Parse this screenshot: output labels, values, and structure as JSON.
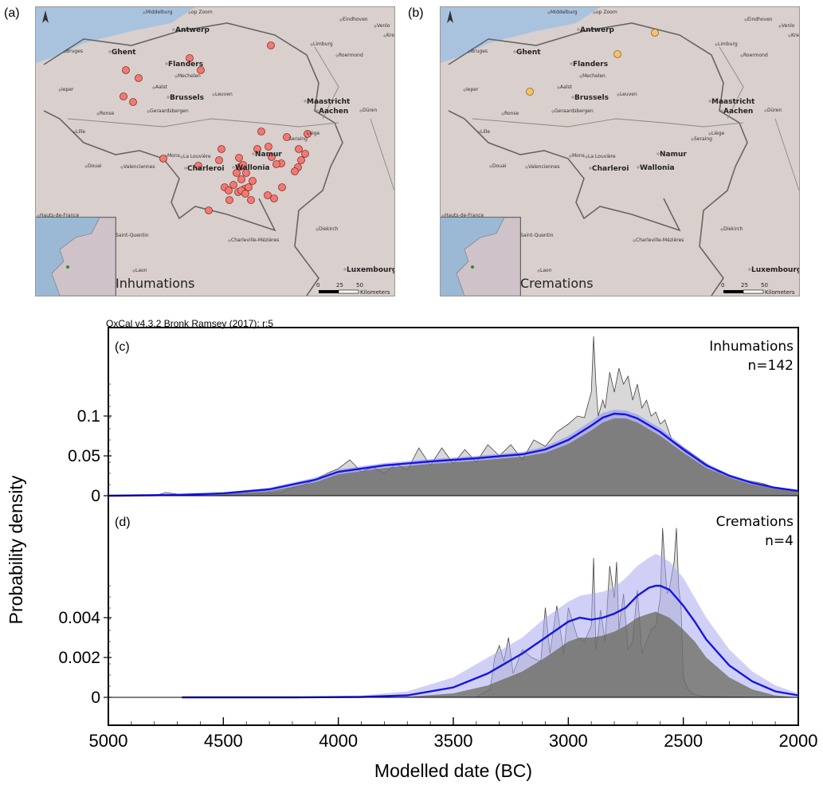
{
  "maps": [
    {
      "panel": "(a)",
      "caption": "Inhumations",
      "dot_color": "#f07a73",
      "dot_stroke": "#8a2e2a",
      "places": [
        "Middelburg",
        "op Zoom",
        "Eindhoven",
        "Venlo",
        "Kre",
        "Antwerp",
        "Bruges",
        "Ghent",
        "Limburg",
        "Roermond",
        "Flanders",
        "Mechelen",
        "Ieper",
        "Aalst",
        "Brussels",
        "Leuven",
        "Maastricht",
        "Aachen",
        "Düren",
        "Ronse",
        "Geraardsbergen",
        "Lille",
        "Liège",
        "Seraing",
        "Mons",
        "La Louvière",
        "Namur",
        "Douai",
        "Valenciennes",
        "Charleroi",
        "Wallonia",
        "Hauts-de-France",
        "Saint-Quentin",
        "Charleville-Mézières",
        "Diekirch",
        "Luxembourg",
        "Laon"
      ],
      "scale_labels": [
        "0",
        "25",
        "50"
      ],
      "scale_unit": "Kilometers"
    },
    {
      "panel": "(b)",
      "caption": "Cremations",
      "dot_color": "#f5c26b",
      "dot_stroke": "#8a6a20",
      "places": [
        "Middelburg",
        "op Zoom",
        "Eindhoven",
        "Venlo",
        "Kre",
        "Antwerp",
        "Bruges",
        "Ghent",
        "Limburg",
        "Roermond",
        "Flanders",
        "Mechelen",
        "Ieper",
        "Aalst",
        "Brussels",
        "Leuven",
        "Maastricht",
        "Aachen",
        "Düren",
        "Ronse",
        "Geraardsbergen",
        "Lille",
        "Liège",
        "Seraing",
        "Mons",
        "La Louvière",
        "Namur",
        "Douai",
        "Valenciennes",
        "Charleroi",
        "Wallonia",
        "Hauts-de-France",
        "Saint-Quentin",
        "Charleville-Mézières",
        "Diekirch",
        "Luxembourg",
        "Laon"
      ],
      "scale_labels": [
        "0",
        "25",
        "50"
      ],
      "scale_unit": "Kilometers"
    }
  ],
  "oxcal_header": "OxCal v4.3.2 Bronk Ramsey (2017); r:5",
  "chart_data": [
    {
      "panel": "(c)",
      "type": "area",
      "label": "Inhumations",
      "n_label": "n=142",
      "ylabel": "Probability density",
      "yticks": [
        0,
        0.05,
        0.1
      ],
      "ytick_labels": [
        "0",
        "0.05",
        "0.1"
      ],
      "ylim": [
        0,
        0.2
      ],
      "kde_color": "#1515e6",
      "kde_band_color": "#8a8ff0",
      "kde": {
        "x": [
          5000,
          4700,
          4500,
          4300,
          4100,
          4000,
          3800,
          3600,
          3400,
          3200,
          3100,
          3000,
          2900,
          2850,
          2800,
          2750,
          2700,
          2600,
          2500,
          2400,
          2300,
          2200,
          2100,
          2000
        ],
        "y": [
          0.0,
          0.001,
          0.003,
          0.008,
          0.02,
          0.03,
          0.038,
          0.043,
          0.047,
          0.052,
          0.058,
          0.07,
          0.088,
          0.098,
          0.103,
          0.102,
          0.097,
          0.08,
          0.058,
          0.038,
          0.025,
          0.016,
          0.01,
          0.006
        ]
      },
      "kde_upper": [
        0.0005,
        0.002,
        0.004,
        0.01,
        0.023,
        0.033,
        0.041,
        0.046,
        0.05,
        0.055,
        0.062,
        0.075,
        0.094,
        0.104,
        0.108,
        0.107,
        0.102,
        0.085,
        0.062,
        0.041,
        0.027,
        0.018,
        0.011,
        0.007
      ],
      "kde_lower": [
        0.0,
        0.0005,
        0.002,
        0.006,
        0.017,
        0.027,
        0.035,
        0.04,
        0.044,
        0.049,
        0.054,
        0.065,
        0.082,
        0.092,
        0.097,
        0.097,
        0.092,
        0.075,
        0.054,
        0.035,
        0.023,
        0.014,
        0.009,
        0.005
      ],
      "spd": {
        "x": [
          5000,
          4800,
          4750,
          4700,
          4550,
          4400,
          4250,
          4200,
          4150,
          4100,
          4050,
          4000,
          3950,
          3900,
          3850,
          3800,
          3750,
          3700,
          3650,
          3600,
          3550,
          3500,
          3450,
          3400,
          3350,
          3300,
          3250,
          3200,
          3150,
          3100,
          3050,
          3000,
          2960,
          2930,
          2900,
          2890,
          2880,
          2870,
          2860,
          2850,
          2840,
          2820,
          2800,
          2780,
          2760,
          2740,
          2720,
          2700,
          2680,
          2660,
          2640,
          2620,
          2600,
          2580,
          2550,
          2500,
          2450,
          2400,
          2350,
          2300,
          2250,
          2200,
          2150,
          2100,
          2050,
          2000
        ],
        "y": [
          0.0,
          0.0,
          0.004,
          0.002,
          0.0,
          0.002,
          0.004,
          0.01,
          0.014,
          0.02,
          0.028,
          0.034,
          0.045,
          0.03,
          0.036,
          0.028,
          0.04,
          0.032,
          0.06,
          0.038,
          0.06,
          0.04,
          0.058,
          0.042,
          0.064,
          0.05,
          0.064,
          0.045,
          0.07,
          0.062,
          0.08,
          0.09,
          0.1,
          0.098,
          0.13,
          0.2,
          0.14,
          0.1,
          0.11,
          0.12,
          0.11,
          0.155,
          0.13,
          0.16,
          0.14,
          0.15,
          0.12,
          0.14,
          0.11,
          0.12,
          0.1,
          0.105,
          0.09,
          0.095,
          0.07,
          0.06,
          0.05,
          0.04,
          0.03,
          0.025,
          0.02,
          0.018,
          0.015,
          0.01,
          0.008,
          0.005
        ]
      }
    },
    {
      "panel": "(d)",
      "type": "area",
      "label": "Cremations",
      "n_label": "n=4",
      "ylabel": "Probability density",
      "yticks": [
        0,
        0.002,
        0.004
      ],
      "ytick_labels": [
        "0",
        "0.002",
        "0.004"
      ],
      "ylim": [
        0,
        0.008
      ],
      "kde_color": "#1515e6",
      "kde_band_color": "#a9a9f0",
      "kde": {
        "x": [
          4680,
          4200,
          3900,
          3700,
          3500,
          3350,
          3200,
          3100,
          3000,
          2950,
          2900,
          2850,
          2800,
          2750,
          2700,
          2650,
          2620,
          2600,
          2560,
          2500,
          2450,
          2400,
          2300,
          2200,
          2100,
          2000
        ],
        "y": [
          0.0,
          0.0,
          2e-05,
          0.0001,
          0.0005,
          0.0012,
          0.0022,
          0.003,
          0.0038,
          0.004,
          0.0039,
          0.004,
          0.0042,
          0.0045,
          0.0051,
          0.0055,
          0.0056,
          0.0056,
          0.0054,
          0.0046,
          0.0038,
          0.0029,
          0.0016,
          0.0008,
          0.0003,
          0.0001
        ]
      },
      "kde_upper": [
        0.0,
        1e-05,
        0.0001,
        0.0003,
        0.001,
        0.002,
        0.003,
        0.004,
        0.0048,
        0.0051,
        0.0052,
        0.0053,
        0.0055,
        0.006,
        0.0066,
        0.007,
        0.0072,
        0.0071,
        0.0068,
        0.006,
        0.005,
        0.004,
        0.0024,
        0.0013,
        0.0006,
        0.0002
      ],
      "kde_lower": [
        0.0,
        0.0,
        0.0,
        3e-05,
        0.0002,
        0.0006,
        0.0013,
        0.002,
        0.0028,
        0.003,
        0.003,
        0.0031,
        0.0033,
        0.0036,
        0.004,
        0.0042,
        0.0043,
        0.0042,
        0.004,
        0.0034,
        0.0028,
        0.002,
        0.001,
        0.0004,
        0.0001,
        0.0
      ],
      "spd": {
        "x": [
          5000,
          3400,
          3340,
          3320,
          3300,
          3280,
          3260,
          3240,
          3200,
          3160,
          3120,
          3100,
          3080,
          3050,
          3020,
          3000,
          2960,
          2930,
          2900,
          2890,
          2880,
          2870,
          2860,
          2840,
          2820,
          2800,
          2790,
          2780,
          2760,
          2740,
          2720,
          2700,
          2680,
          2660,
          2640,
          2620,
          2600,
          2590,
          2580,
          2570,
          2560,
          2540,
          2530,
          2520,
          2510,
          2500,
          2480,
          2460,
          2440,
          2400,
          2300,
          2200,
          2100,
          2000
        ],
        "y": [
          0.0,
          0.0,
          0.0004,
          0.002,
          0.0026,
          0.0018,
          0.003,
          0.0012,
          0.0024,
          0.002,
          0.0018,
          0.0045,
          0.0022,
          0.0046,
          0.0022,
          0.0045,
          0.003,
          0.0028,
          0.0036,
          0.007,
          0.0024,
          0.0032,
          0.0044,
          0.0028,
          0.0066,
          0.005,
          0.0068,
          0.0034,
          0.0052,
          0.0024,
          0.0028,
          0.0054,
          0.0022,
          0.0028,
          0.0034,
          0.0036,
          0.005,
          0.0085,
          0.0066,
          0.0052,
          0.0055,
          0.0068,
          0.0085,
          0.0055,
          0.0046,
          0.001,
          0.0004,
          0.0002,
          0.0001,
          5e-05,
          2e-05,
          1e-05,
          0.0,
          0.0
        ]
      }
    }
  ],
  "xaxis": {
    "label": "Modelled date (BC)",
    "ticks": [
      5000,
      4500,
      4000,
      3500,
      3000,
      2500,
      2000
    ],
    "tick_labels": [
      "5000",
      "4500",
      "4000",
      "3500",
      "3000",
      "2500",
      "2000"
    ],
    "xlim": [
      5000,
      2000
    ],
    "reversed": true
  }
}
